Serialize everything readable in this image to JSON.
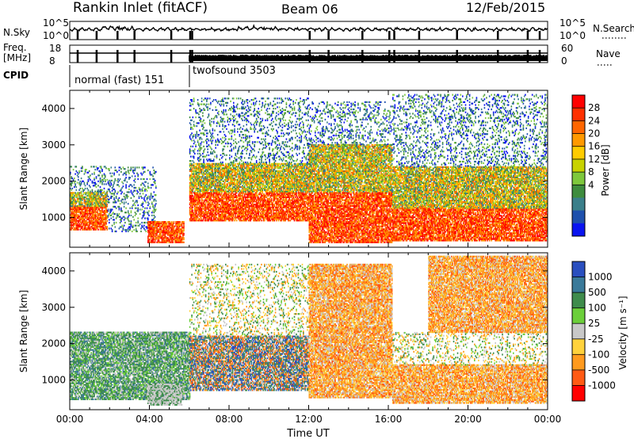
{
  "header": {
    "station": "Rankin Inlet (fitACF)",
    "beam": "Beam 06",
    "date": "12/Feb/2015"
  },
  "strips": {
    "nsky_label": "N.Sky",
    "nsky_ticks": [
      "10^5",
      "10^0"
    ],
    "nsearch_label": "N.Search",
    "nsearch_ticks": [
      "10^5",
      "10^0"
    ],
    "freq_label": "Freq.",
    "freq_unit": "[MHz]",
    "freq_ticks": [
      "18",
      "8"
    ],
    "nave_label": "Nave",
    "nave_ticks": [
      "60",
      "0"
    ],
    "cpid_label": "CPID",
    "modes": [
      {
        "name": "normal (fast)",
        "id": "151",
        "start": "00:00",
        "end": "06:00"
      },
      {
        "name": "twofsound",
        "id": "3503",
        "start": "06:00",
        "end": "24:00"
      }
    ],
    "markers_hours": [
      0.4,
      1.35,
      2.4,
      3.25,
      5.1,
      6.05,
      6.15,
      12.05,
      13.0,
      14.7,
      16.05,
      16.3,
      17.55,
      19.45,
      21.5,
      23.0,
      23.6
    ]
  },
  "colors": {
    "bg": "#ffffff",
    "axis": "#000000"
  },
  "chart_data": [
    {
      "type": "heatmap",
      "name": "power",
      "xlabel": "",
      "ylabel": "Slant Range [km]",
      "xlim": [
        "00:00",
        "24:00"
      ],
      "ylim": [
        180,
        4500
      ],
      "yticks": [
        1000,
        2000,
        3000,
        4000
      ],
      "colorbar": {
        "label": "Power [dB]",
        "ticks": [
          "28",
          "24",
          "20",
          "16",
          "12",
          "8",
          "4"
        ],
        "bands": [
          "#ff0000",
          "#ff3000",
          "#ff6600",
          "#ff9900",
          "#ffcc00",
          "#c8d200",
          "#7ec83c",
          "#3e8c3e",
          "#3a7f8a",
          "#1e50ac",
          "#0a14f0"
        ]
      },
      "regions": [
        {
          "t0": 0.0,
          "t1": 1.9,
          "r0": 650,
          "r1": 1300,
          "palette": "strong"
        },
        {
          "t0": 0.0,
          "t1": 1.9,
          "r0": 1300,
          "r1": 1700,
          "palette": "medium"
        },
        {
          "t0": 0.0,
          "t1": 1.9,
          "r0": 1700,
          "r1": 2400,
          "palette": "weak"
        },
        {
          "t0": 1.9,
          "t1": 4.3,
          "r0": 600,
          "r1": 2400,
          "palette": "weak"
        },
        {
          "t0": 3.9,
          "t1": 5.7,
          "r0": 300,
          "r1": 900,
          "palette": "strong"
        },
        {
          "t0": 6.0,
          "t1": 12.0,
          "r0": 900,
          "r1": 1700,
          "palette": "strong"
        },
        {
          "t0": 6.0,
          "t1": 12.0,
          "r0": 1700,
          "r1": 2500,
          "palette": "medium"
        },
        {
          "t0": 6.0,
          "t1": 12.0,
          "r0": 2500,
          "r1": 4300,
          "palette": "weak"
        },
        {
          "t0": 12.0,
          "t1": 16.2,
          "r0": 300,
          "r1": 1700,
          "palette": "strong"
        },
        {
          "t0": 12.0,
          "t1": 16.2,
          "r0": 1700,
          "r1": 3000,
          "palette": "medium"
        },
        {
          "t0": 12.0,
          "t1": 16.2,
          "r0": 3000,
          "r1": 4200,
          "palette": "weak"
        },
        {
          "t0": 16.2,
          "t1": 24.0,
          "r0": 350,
          "r1": 1250,
          "palette": "strong"
        },
        {
          "t0": 16.2,
          "t1": 24.0,
          "r0": 1250,
          "r1": 2400,
          "palette": "medium"
        },
        {
          "t0": 16.2,
          "t1": 24.0,
          "r0": 2400,
          "r1": 4400,
          "palette": "weak"
        }
      ]
    },
    {
      "type": "heatmap",
      "name": "velocity",
      "xlabel": "Time UT",
      "ylabel": "Slant Range [km]",
      "xlim": [
        "00:00",
        "24:00"
      ],
      "xticks": [
        "00:00",
        "04:00",
        "08:00",
        "12:00",
        "16:00",
        "20:00",
        "00:00"
      ],
      "ylim": [
        180,
        4500
      ],
      "yticks": [
        1000,
        2000,
        3000,
        4000
      ],
      "colorbar": {
        "label": "Velocity [m s⁻¹]",
        "ticks": [
          "1000",
          "500",
          "100",
          "25",
          "-25",
          "-100",
          "-500",
          "-1000"
        ],
        "bands": [
          "#2a4fbf",
          "#3a7a9a",
          "#3f8c4c",
          "#6ccf3a",
          "#c8c8c8",
          "#ffd23c",
          "#ff9a1e",
          "#ff5a14",
          "#ff0000"
        ]
      },
      "regions": [
        {
          "t0": 0.0,
          "t1": 6.0,
          "r0": 450,
          "r1": 2300,
          "palette": "green"
        },
        {
          "t0": 3.9,
          "t1": 5.6,
          "r0": 300,
          "r1": 900,
          "palette": "gray"
        },
        {
          "t0": 6.0,
          "t1": 12.0,
          "r0": 700,
          "r1": 2200,
          "palette": "mixed"
        },
        {
          "t0": 6.0,
          "t1": 12.0,
          "r0": 2200,
          "r1": 4200,
          "palette": "weak"
        },
        {
          "t0": 12.0,
          "t1": 16.2,
          "r0": 500,
          "r1": 2400,
          "palette": "orange"
        },
        {
          "t0": 12.0,
          "t1": 16.2,
          "r0": 2400,
          "r1": 4200,
          "palette": "orange"
        },
        {
          "t0": 16.2,
          "t1": 24.0,
          "r0": 350,
          "r1": 1400,
          "palette": "orange"
        },
        {
          "t0": 16.2,
          "t1": 24.0,
          "r0": 1400,
          "r1": 2300,
          "palette": "weak"
        },
        {
          "t0": 18.0,
          "t1": 24.0,
          "r0": 2300,
          "r1": 4400,
          "palette": "orange"
        }
      ]
    }
  ]
}
